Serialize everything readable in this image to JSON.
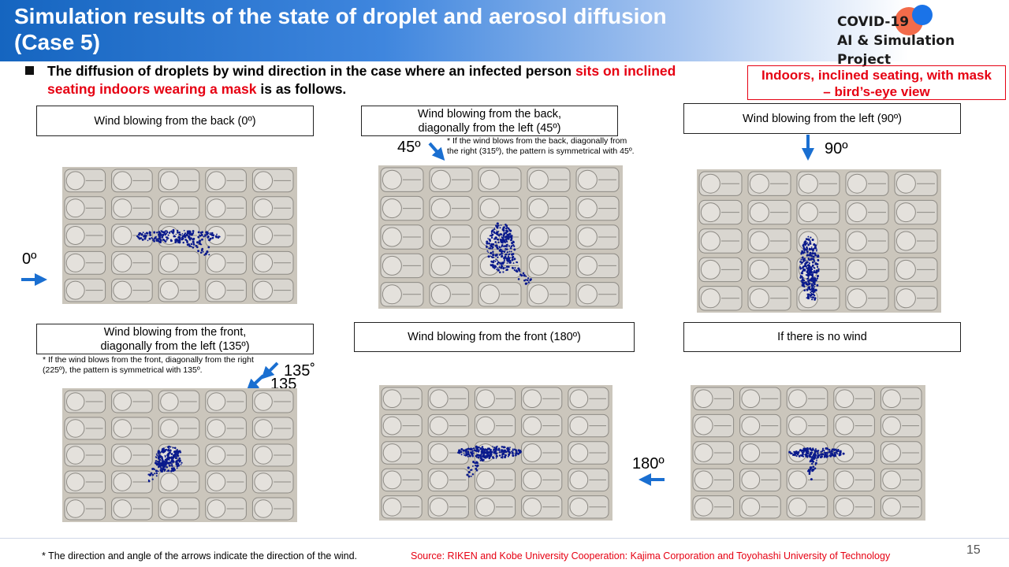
{
  "header": {
    "title_line1": "Simulation results of the state of droplet and aerosol diffusion",
    "title_line2": "(Case 5)",
    "logo_line1": "COVID-19",
    "logo_line2": "AI & Simulation Project"
  },
  "lead": {
    "part1": "The diffusion of droplets by wind direction in the case where an infected person ",
    "part2_red": "sits on inclined seating indoors wearing a mask",
    "part3": " is as follows."
  },
  "view_label": {
    "line1": "Indoors, inclined seating, with mask",
    "line2": "– bird’s-eye view"
  },
  "panels": [
    {
      "caption": "Wind blowing from the back (0º)"
    },
    {
      "caption_line1": "Wind blowing from the back,",
      "caption_line2": "diagonally from the left (45º)",
      "note": "* If the wind blows from the back, diagonally from the right (315º), the pattern is symmetrical with 45º.",
      "angle": "45º"
    },
    {
      "caption": "Wind blowing from the left (90º)",
      "angle": "90º"
    },
    {
      "caption_line1": "Wind blowing from the front,",
      "caption_line2": "diagonally from the left (135º)",
      "note": "* If the wind blows from the front, diagonally from the right (225º), the pattern is symmetrical with 135º.",
      "angle_a": "135˚",
      "angle_b": "135"
    },
    {
      "caption": "Wind blowing from the front (180º)",
      "angle": "180º"
    },
    {
      "caption": "If there is no wind"
    }
  ],
  "angle_0": "0º",
  "footer": {
    "note": "* The direction and angle of the arrows indicate the direction of the wind.",
    "source": "Source: RIKEN  and Kobe University Cooperation: Kajima Corporation and Toyohashi University of Technology"
  },
  "page_number": "15",
  "colors": {
    "accent_red": "#e60012",
    "arrow_blue": "#1a6fd1",
    "particle": "#0a1a8c",
    "floor": "#cbc6bc"
  }
}
